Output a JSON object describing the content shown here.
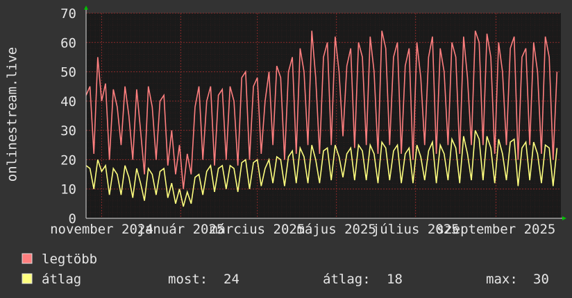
{
  "chart_data": {
    "type": "line",
    "y_label": "onlinestream.live",
    "x": [
      0,
      3,
      6,
      9,
      12,
      15,
      18,
      21,
      24,
      27,
      30,
      33,
      36,
      39,
      42,
      45,
      48,
      51,
      54,
      57,
      60,
      63,
      66,
      69,
      72,
      75,
      78,
      81,
      84,
      87,
      90,
      93,
      96,
      99,
      102,
      105,
      108,
      111,
      114,
      117,
      120,
      123,
      126,
      129,
      132,
      135,
      138,
      141,
      144,
      147,
      150,
      153,
      156,
      159,
      162,
      165,
      168,
      171,
      174,
      177,
      180,
      183,
      186,
      189,
      192,
      195,
      198,
      201,
      204,
      207,
      210,
      213,
      216,
      219,
      222,
      225,
      228,
      231,
      234,
      237,
      240,
      243,
      246,
      249,
      252,
      255,
      258,
      261,
      264,
      267,
      270,
      273,
      276,
      279,
      282,
      285,
      288,
      291,
      294,
      297,
      300,
      303,
      306,
      309,
      312,
      315,
      318,
      321,
      324,
      327,
      330,
      333,
      336,
      339,
      342,
      345,
      348,
      351,
      354,
      357,
      360,
      363
    ],
    "xlim": [
      0,
      366
    ],
    "xticks": [
      {
        "value": 12,
        "label": "november 2024"
      },
      {
        "value": 73,
        "label": "január 2025"
      },
      {
        "value": 132,
        "label": "március 2025"
      },
      {
        "value": 193,
        "label": "május 2025"
      },
      {
        "value": 254,
        "label": "július 2025"
      },
      {
        "value": 316,
        "label": "szeptember 2025"
      }
    ],
    "ylim": [
      0,
      70
    ],
    "yticks": [
      0,
      10,
      20,
      30,
      40,
      50,
      60,
      70
    ],
    "grid": true,
    "series": [
      {
        "name": "legtöbb",
        "color": "#ff7f7f",
        "values": [
          42,
          45,
          22,
          55,
          40,
          46,
          20,
          44,
          38,
          25,
          45,
          35,
          20,
          44,
          30,
          15,
          45,
          38,
          20,
          40,
          42,
          18,
          30,
          15,
          25,
          10,
          22,
          15,
          38,
          45,
          20,
          40,
          45,
          18,
          42,
          44,
          20,
          45,
          40,
          18,
          48,
          50,
          20,
          45,
          48,
          22,
          40,
          50,
          25,
          52,
          48,
          20,
          50,
          55,
          22,
          58,
          50,
          25,
          64,
          48,
          22,
          55,
          60,
          25,
          62,
          50,
          28,
          52,
          58,
          24,
          60,
          55,
          25,
          62,
          50,
          22,
          64,
          58,
          25,
          55,
          60,
          22,
          52,
          58,
          20,
          60,
          48,
          25,
          55,
          62,
          22,
          58,
          50,
          25,
          60,
          55,
          22,
          62,
          48,
          25,
          64,
          60,
          25,
          63,
          55,
          22,
          60,
          50,
          25,
          58,
          62,
          20,
          55,
          58,
          25,
          60,
          50,
          22,
          62,
          55,
          20,
          50
        ]
      },
      {
        "name": "átlag",
        "color": "#ffff7f",
        "values": [
          18,
          17,
          10,
          20,
          16,
          18,
          8,
          17,
          15,
          8,
          18,
          14,
          7,
          17,
          12,
          6,
          17,
          15,
          8,
          16,
          17,
          7,
          12,
          5,
          10,
          4,
          9,
          5,
          14,
          15,
          8,
          16,
          18,
          9,
          17,
          18,
          10,
          18,
          17,
          9,
          19,
          20,
          10,
          19,
          20,
          11,
          17,
          20,
          12,
          21,
          20,
          11,
          21,
          23,
          12,
          24,
          21,
          12,
          25,
          20,
          12,
          23,
          24,
          13,
          25,
          21,
          14,
          22,
          24,
          13,
          25,
          23,
          13,
          25,
          22,
          12,
          26,
          24,
          13,
          23,
          25,
          12,
          22,
          24,
          12,
          25,
          21,
          13,
          23,
          26,
          12,
          25,
          22,
          13,
          27,
          24,
          12,
          28,
          22,
          13,
          30,
          27,
          13,
          28,
          24,
          12,
          27,
          22,
          13,
          26,
          27,
          11,
          24,
          26,
          13,
          26,
          22,
          12,
          25,
          24,
          11,
          24
        ]
      }
    ],
    "stats": [
      {
        "label": "most:",
        "value": 24
      },
      {
        "label": "átlag:",
        "value": 18
      },
      {
        "label": "max:",
        "value": 30
      }
    ]
  }
}
